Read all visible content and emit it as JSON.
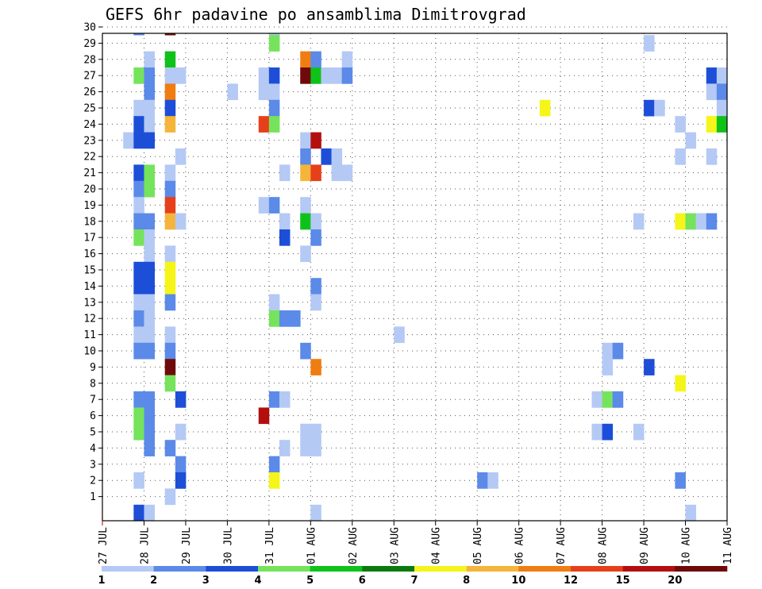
{
  "chart_data": {
    "type": "heatmap",
    "title": "GEFS 6hr padavine po ansamblima Dimitrovgrad",
    "xlabel": "",
    "ylabel": "",
    "x_start": "27 JUL 00Z",
    "x_end": "11 AUG 00Z",
    "x_step": "6hr",
    "x_tick_labels": [
      "27 JUL",
      "28 JUL",
      "29 JUL",
      "30 JUL",
      "31 JUL",
      "01 AUG",
      "02 AUG",
      "03 AUG",
      "04 AUG",
      "05 AUG",
      "06 AUG",
      "07 AUG",
      "08 AUG",
      "09 AUG",
      "10 AUG",
      "11 AUG"
    ],
    "y_tick_labels": [
      "1",
      "2",
      "3",
      "4",
      "5",
      "6",
      "7",
      "8",
      "9",
      "10",
      "11",
      "12",
      "13",
      "14",
      "15",
      "16",
      "17",
      "18",
      "19",
      "20",
      "21",
      "22",
      "23",
      "24",
      "25",
      "26",
      "27",
      "28",
      "29",
      "30"
    ],
    "grid": true,
    "colorbar": {
      "labels": [
        "1",
        "2",
        "3",
        "4",
        "5",
        "6",
        "7",
        "8",
        "10",
        "12",
        "15",
        "20"
      ],
      "colors": [
        "#b5c9f5",
        "#5b8ae8",
        "#1c4ed8",
        "#75e35c",
        "#0fc21a",
        "#0a7a0e",
        "#f5f51a",
        "#f5b53a",
        "#f07d12",
        "#e6401a",
        "#b30f0f",
        "#6e0a0a"
      ]
    },
    "cells": [
      {
        "member": 30,
        "time": "27 JUL 18Z",
        "value": 2
      },
      {
        "member": 30,
        "time": "28 JUL 12Z",
        "value": 20
      },
      {
        "member": 30,
        "time": "31 JUL 00Z",
        "value": 1
      },
      {
        "member": 29,
        "time": "31 JUL 00Z",
        "value": 4
      },
      {
        "member": 29,
        "time": "09 AUG 00Z",
        "value": 1
      },
      {
        "member": 28,
        "time": "28 JUL 00Z",
        "value": 1
      },
      {
        "member": 28,
        "time": "28 JUL 12Z",
        "value": 5
      },
      {
        "member": 28,
        "time": "31 JUL 18Z",
        "value": 10
      },
      {
        "member": 28,
        "time": "01 AUG 00Z",
        "value": 2
      },
      {
        "member": 28,
        "time": "01 AUG 18Z",
        "value": 1
      },
      {
        "member": 27,
        "time": "27 JUL 18Z",
        "value": 4
      },
      {
        "member": 27,
        "time": "28 JUL 00Z",
        "value": 2
      },
      {
        "member": 27,
        "time": "28 JUL 12Z",
        "value": 1
      },
      {
        "member": 27,
        "time": "28 JUL 18Z",
        "value": 1
      },
      {
        "member": 27,
        "time": "30 JUL 18Z",
        "value": 1
      },
      {
        "member": 27,
        "time": "31 JUL 00Z",
        "value": 3
      },
      {
        "member": 27,
        "time": "31 JUL 18Z",
        "value": 20
      },
      {
        "member": 27,
        "time": "01 AUG 00Z",
        "value": 5
      },
      {
        "member": 27,
        "time": "01 AUG 06Z",
        "value": 1
      },
      {
        "member": 27,
        "time": "01 AUG 12Z",
        "value": 1
      },
      {
        "member": 27,
        "time": "01 AUG 18Z",
        "value": 2
      },
      {
        "member": 27,
        "time": "10 AUG 12Z",
        "value": 3
      },
      {
        "member": 27,
        "time": "10 AUG 18Z",
        "value": 1
      },
      {
        "member": 26,
        "time": "28 JUL 00Z",
        "value": 2
      },
      {
        "member": 26,
        "time": "28 JUL 12Z",
        "value": 10
      },
      {
        "member": 26,
        "time": "30 JUL 00Z",
        "value": 1
      },
      {
        "member": 26,
        "time": "30 JUL 18Z",
        "value": 1
      },
      {
        "member": 26,
        "time": "31 JUL 00Z",
        "value": 1
      },
      {
        "member": 26,
        "time": "10 AUG 12Z",
        "value": 1
      },
      {
        "member": 26,
        "time": "10 AUG 18Z",
        "value": 2
      },
      {
        "member": 25,
        "time": "27 JUL 18Z",
        "value": 1
      },
      {
        "member": 25,
        "time": "28 JUL 00Z",
        "value": 1
      },
      {
        "member": 25,
        "time": "28 JUL 12Z",
        "value": 3
      },
      {
        "member": 25,
        "time": "31 JUL 00Z",
        "value": 2
      },
      {
        "member": 25,
        "time": "06 AUG 12Z",
        "value": 7
      },
      {
        "member": 25,
        "time": "09 AUG 00Z",
        "value": 3
      },
      {
        "member": 25,
        "time": "09 AUG 06Z",
        "value": 1
      },
      {
        "member": 25,
        "time": "10 AUG 18Z",
        "value": 1
      },
      {
        "member": 24,
        "time": "27 JUL 18Z",
        "value": 3
      },
      {
        "member": 24,
        "time": "28 JUL 00Z",
        "value": 1
      },
      {
        "member": 24,
        "time": "28 JUL 12Z",
        "value": 8
      },
      {
        "member": 24,
        "time": "30 JUL 18Z",
        "value": 12
      },
      {
        "member": 24,
        "time": "31 JUL 00Z",
        "value": 4
      },
      {
        "member": 24,
        "time": "09 AUG 18Z",
        "value": 1
      },
      {
        "member": 24,
        "time": "10 AUG 12Z",
        "value": 7
      },
      {
        "member": 24,
        "time": "10 AUG 18Z",
        "value": 5
      },
      {
        "member": 23,
        "time": "27 JUL 12Z",
        "value": 1
      },
      {
        "member": 23,
        "time": "27 JUL 18Z",
        "value": 3
      },
      {
        "member": 23,
        "time": "28 JUL 00Z",
        "value": 3
      },
      {
        "member": 23,
        "time": "31 JUL 18Z",
        "value": 1
      },
      {
        "member": 23,
        "time": "01 AUG 00Z",
        "value": 15
      },
      {
        "member": 23,
        "time": "10 AUG 00Z",
        "value": 1
      },
      {
        "member": 22,
        "time": "28 JUL 18Z",
        "value": 1
      },
      {
        "member": 22,
        "time": "31 JUL 18Z",
        "value": 2
      },
      {
        "member": 22,
        "time": "01 AUG 06Z",
        "value": 3
      },
      {
        "member": 22,
        "time": "01 AUG 12Z",
        "value": 1
      },
      {
        "member": 22,
        "time": "09 AUG 18Z",
        "value": 1
      },
      {
        "member": 22,
        "time": "10 AUG 12Z",
        "value": 1
      },
      {
        "member": 21,
        "time": "27 JUL 18Z",
        "value": 3
      },
      {
        "member": 21,
        "time": "28 JUL 00Z",
        "value": 4
      },
      {
        "member": 21,
        "time": "28 JUL 12Z",
        "value": 1
      },
      {
        "member": 21,
        "time": "31 JUL 06Z",
        "value": 1
      },
      {
        "member": 21,
        "time": "31 JUL 18Z",
        "value": 8
      },
      {
        "member": 21,
        "time": "01 AUG 00Z",
        "value": 12
      },
      {
        "member": 21,
        "time": "01 AUG 12Z",
        "value": 1
      },
      {
        "member": 21,
        "time": "01 AUG 18Z",
        "value": 1
      },
      {
        "member": 20,
        "time": "27 JUL 18Z",
        "value": 2
      },
      {
        "member": 20,
        "time": "28 JUL 00Z",
        "value": 4
      },
      {
        "member": 20,
        "time": "28 JUL 12Z",
        "value": 2
      },
      {
        "member": 19,
        "time": "27 JUL 18Z",
        "value": 1
      },
      {
        "member": 19,
        "time": "28 JUL 12Z",
        "value": 12
      },
      {
        "member": 19,
        "time": "30 JUL 18Z",
        "value": 1
      },
      {
        "member": 19,
        "time": "31 JUL 00Z",
        "value": 2
      },
      {
        "member": 19,
        "time": "31 JUL 18Z",
        "value": 1
      },
      {
        "member": 18,
        "time": "27 JUL 18Z",
        "value": 2
      },
      {
        "member": 18,
        "time": "28 JUL 00Z",
        "value": 2
      },
      {
        "member": 18,
        "time": "28 JUL 12Z",
        "value": 8
      },
      {
        "member": 18,
        "time": "28 JUL 18Z",
        "value": 1
      },
      {
        "member": 18,
        "time": "31 JUL 06Z",
        "value": 1
      },
      {
        "member": 18,
        "time": "31 JUL 18Z",
        "value": 5
      },
      {
        "member": 18,
        "time": "01 AUG 00Z",
        "value": 1
      },
      {
        "member": 18,
        "time": "08 AUG 18Z",
        "value": 1
      },
      {
        "member": 18,
        "time": "09 AUG 18Z",
        "value": 7
      },
      {
        "member": 18,
        "time": "10 AUG 00Z",
        "value": 4
      },
      {
        "member": 18,
        "time": "10 AUG 06Z",
        "value": 1
      },
      {
        "member": 18,
        "time": "10 AUG 12Z",
        "value": 2
      },
      {
        "member": 17,
        "time": "27 JUL 18Z",
        "value": 4
      },
      {
        "member": 17,
        "time": "28 JUL 00Z",
        "value": 1
      },
      {
        "member": 17,
        "time": "31 JUL 06Z",
        "value": 3
      },
      {
        "member": 17,
        "time": "01 AUG 00Z",
        "value": 2
      },
      {
        "member": 16,
        "time": "28 JUL 00Z",
        "value": 1
      },
      {
        "member": 16,
        "time": "28 JUL 12Z",
        "value": 1
      },
      {
        "member": 16,
        "time": "31 JUL 18Z",
        "value": 1
      },
      {
        "member": 15,
        "time": "27 JUL 18Z",
        "value": 3
      },
      {
        "member": 15,
        "time": "28 JUL 00Z",
        "value": 3
      },
      {
        "member": 15,
        "time": "28 JUL 12Z",
        "value": 7
      },
      {
        "member": 14,
        "time": "27 JUL 18Z",
        "value": 3
      },
      {
        "member": 14,
        "time": "28 JUL 00Z",
        "value": 3
      },
      {
        "member": 14,
        "time": "28 JUL 12Z",
        "value": 7
      },
      {
        "member": 14,
        "time": "01 AUG 00Z",
        "value": 2
      },
      {
        "member": 13,
        "time": "27 JUL 18Z",
        "value": 1
      },
      {
        "member": 13,
        "time": "28 JUL 00Z",
        "value": 1
      },
      {
        "member": 13,
        "time": "28 JUL 12Z",
        "value": 2
      },
      {
        "member": 13,
        "time": "31 JUL 00Z",
        "value": 1
      },
      {
        "member": 13,
        "time": "01 AUG 00Z",
        "value": 1
      },
      {
        "member": 12,
        "time": "27 JUL 18Z",
        "value": 2
      },
      {
        "member": 12,
        "time": "28 JUL 00Z",
        "value": 1
      },
      {
        "member": 12,
        "time": "31 JUL 00Z",
        "value": 4
      },
      {
        "member": 12,
        "time": "31 JUL 06Z",
        "value": 2
      },
      {
        "member": 12,
        "time": "31 JUL 12Z",
        "value": 2
      },
      {
        "member": 11,
        "time": "27 JUL 18Z",
        "value": 1
      },
      {
        "member": 11,
        "time": "28 JUL 00Z",
        "value": 1
      },
      {
        "member": 11,
        "time": "28 JUL 12Z",
        "value": 1
      },
      {
        "member": 11,
        "time": "03 AUG 00Z",
        "value": 1
      },
      {
        "member": 10,
        "time": "27 JUL 18Z",
        "value": 2
      },
      {
        "member": 10,
        "time": "28 JUL 00Z",
        "value": 2
      },
      {
        "member": 10,
        "time": "28 JUL 12Z",
        "value": 2
      },
      {
        "member": 10,
        "time": "31 JUL 18Z",
        "value": 2
      },
      {
        "member": 10,
        "time": "08 AUG 00Z",
        "value": 1
      },
      {
        "member": 10,
        "time": "08 AUG 06Z",
        "value": 2
      },
      {
        "member": 9,
        "time": "28 JUL 12Z",
        "value": 20
      },
      {
        "member": 9,
        "time": "01 AUG 00Z",
        "value": 10
      },
      {
        "member": 9,
        "time": "08 AUG 00Z",
        "value": 1
      },
      {
        "member": 9,
        "time": "09 AUG 00Z",
        "value": 3
      },
      {
        "member": 8,
        "time": "28 JUL 12Z",
        "value": 4
      },
      {
        "member": 8,
        "time": "09 AUG 18Z",
        "value": 7
      },
      {
        "member": 7,
        "time": "27 JUL 18Z",
        "value": 2
      },
      {
        "member": 7,
        "time": "28 JUL 00Z",
        "value": 2
      },
      {
        "member": 7,
        "time": "28 JUL 18Z",
        "value": 3
      },
      {
        "member": 7,
        "time": "31 JUL 00Z",
        "value": 2
      },
      {
        "member": 7,
        "time": "31 JUL 06Z",
        "value": 1
      },
      {
        "member": 7,
        "time": "07 AUG 18Z",
        "value": 1
      },
      {
        "member": 7,
        "time": "08 AUG 00Z",
        "value": 4
      },
      {
        "member": 7,
        "time": "08 AUG 06Z",
        "value": 2
      },
      {
        "member": 6,
        "time": "27 JUL 18Z",
        "value": 4
      },
      {
        "member": 6,
        "time": "28 JUL 00Z",
        "value": 2
      },
      {
        "member": 6,
        "time": "30 JUL 18Z",
        "value": 15
      },
      {
        "member": 5,
        "time": "27 JUL 18Z",
        "value": 4
      },
      {
        "member": 5,
        "time": "28 JUL 00Z",
        "value": 2
      },
      {
        "member": 5,
        "time": "28 JUL 18Z",
        "value": 1
      },
      {
        "member": 5,
        "time": "31 JUL 18Z",
        "value": 1
      },
      {
        "member": 5,
        "time": "01 AUG 00Z",
        "value": 1
      },
      {
        "member": 5,
        "time": "07 AUG 18Z",
        "value": 1
      },
      {
        "member": 5,
        "time": "08 AUG 00Z",
        "value": 3
      },
      {
        "member": 5,
        "time": "08 AUG 18Z",
        "value": 1
      },
      {
        "member": 4,
        "time": "28 JUL 00Z",
        "value": 2
      },
      {
        "member": 4,
        "time": "28 JUL 12Z",
        "value": 2
      },
      {
        "member": 4,
        "time": "31 JUL 06Z",
        "value": 1
      },
      {
        "member": 4,
        "time": "31 JUL 18Z",
        "value": 1
      },
      {
        "member": 4,
        "time": "01 AUG 00Z",
        "value": 1
      },
      {
        "member": 3,
        "time": "28 JUL 18Z",
        "value": 2
      },
      {
        "member": 3,
        "time": "31 JUL 00Z",
        "value": 2
      },
      {
        "member": 2,
        "time": "27 JUL 18Z",
        "value": 1
      },
      {
        "member": 2,
        "time": "28 JUL 18Z",
        "value": 3
      },
      {
        "member": 2,
        "time": "31 JUL 00Z",
        "value": 7
      },
      {
        "member": 2,
        "time": "05 AUG 00Z",
        "value": 2
      },
      {
        "member": 2,
        "time": "05 AUG 06Z",
        "value": 1
      },
      {
        "member": 2,
        "time": "09 AUG 18Z",
        "value": 2
      },
      {
        "member": 1,
        "time": "28 JUL 12Z",
        "value": 1
      },
      {
        "member": 0,
        "time": "27 JUL 18Z",
        "value": 3
      },
      {
        "member": 0,
        "time": "28 JUL 00Z",
        "value": 1
      },
      {
        "member": 0,
        "time": "01 AUG 00Z",
        "value": 1
      },
      {
        "member": 0,
        "time": "10 AUG 00Z",
        "value": 1
      }
    ]
  }
}
